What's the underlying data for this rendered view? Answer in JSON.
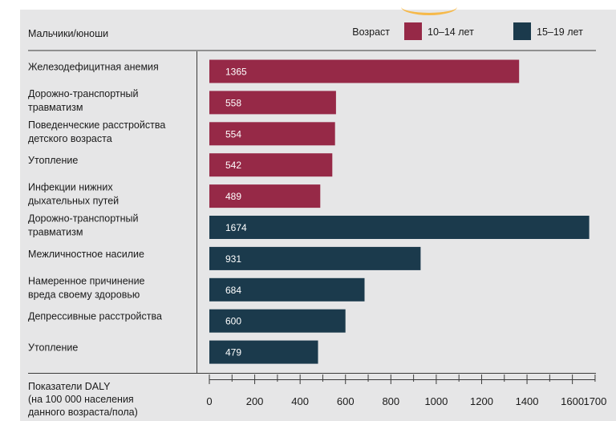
{
  "header": {
    "group_label": "Мальчики/юноши",
    "legend_title": "Возраст"
  },
  "colors": {
    "age_10_14": "#962947",
    "age_15_19": "#1b3a4c",
    "panel_bg": "#e6e6e7",
    "text": "#1a1a1a",
    "accent": "#f6b94a"
  },
  "axis_caption": [
    "Показатели DALY",
    "(на 100 000 населения",
    "данного возраста/пола)"
  ],
  "chart_data": {
    "type": "bar",
    "orientation": "horizontal",
    "xlabel": "Показатели DALY (на 100 000 населения данного возраста/пола)",
    "xlim": [
      0,
      1700
    ],
    "xticks": [
      "0",
      "200",
      "400",
      "600",
      "800",
      "1000",
      "1200",
      "1400",
      "1600",
      "1700"
    ],
    "legend_position": "top-right",
    "series": [
      {
        "name": "10–14 лет",
        "color": "#962947",
        "categories": [
          [
            "Железодефицитная анемия"
          ],
          [
            "Дорожно-транспортный",
            "травматизм"
          ],
          [
            "Поведенческие расстройства",
            "детского возраста"
          ],
          [
            "Утопление"
          ],
          [
            "Инфекции нижних",
            "дыхательных путей"
          ]
        ],
        "values": [
          1365,
          558,
          554,
          542,
          489
        ]
      },
      {
        "name": "15–19 лет",
        "color": "#1b3a4c",
        "categories": [
          [
            "Дорожно-транспортный",
            "травматизм"
          ],
          [
            "Межличностное насилие"
          ],
          [
            "Намеренное причинение",
            "вреда своему здоровью"
          ],
          [
            "Депрессивные расстройства"
          ],
          [
            "Утопление"
          ]
        ],
        "values": [
          1674,
          931,
          684,
          600,
          479
        ]
      }
    ]
  }
}
